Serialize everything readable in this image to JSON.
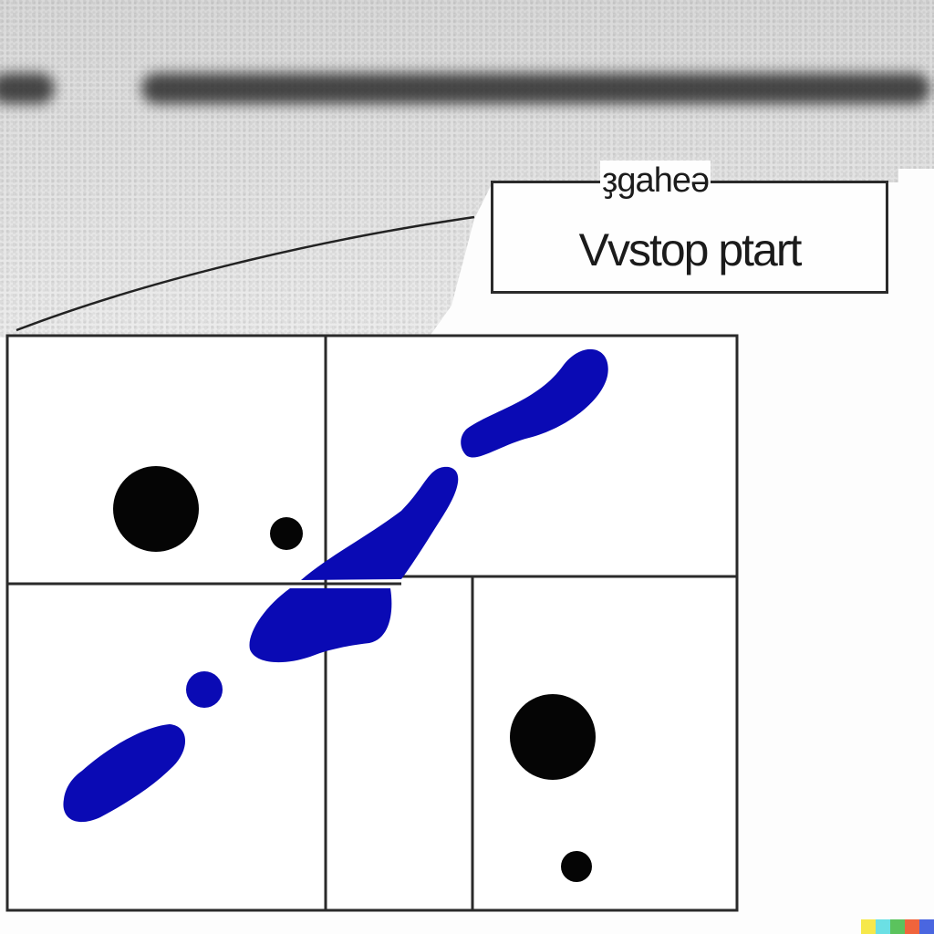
{
  "callout": {
    "top_text": "ҙgahеә",
    "main_text": "Vvstop ptart"
  },
  "colors": {
    "ink_blue": "#0a0ab4",
    "dot_black": "#050505",
    "panel_line": "#2a2a2a",
    "background": "#fdfdfd"
  },
  "watermark_colors": [
    "#f6e84a",
    "#6be0e4",
    "#5bc35d",
    "#f0643c",
    "#4a66e0"
  ]
}
